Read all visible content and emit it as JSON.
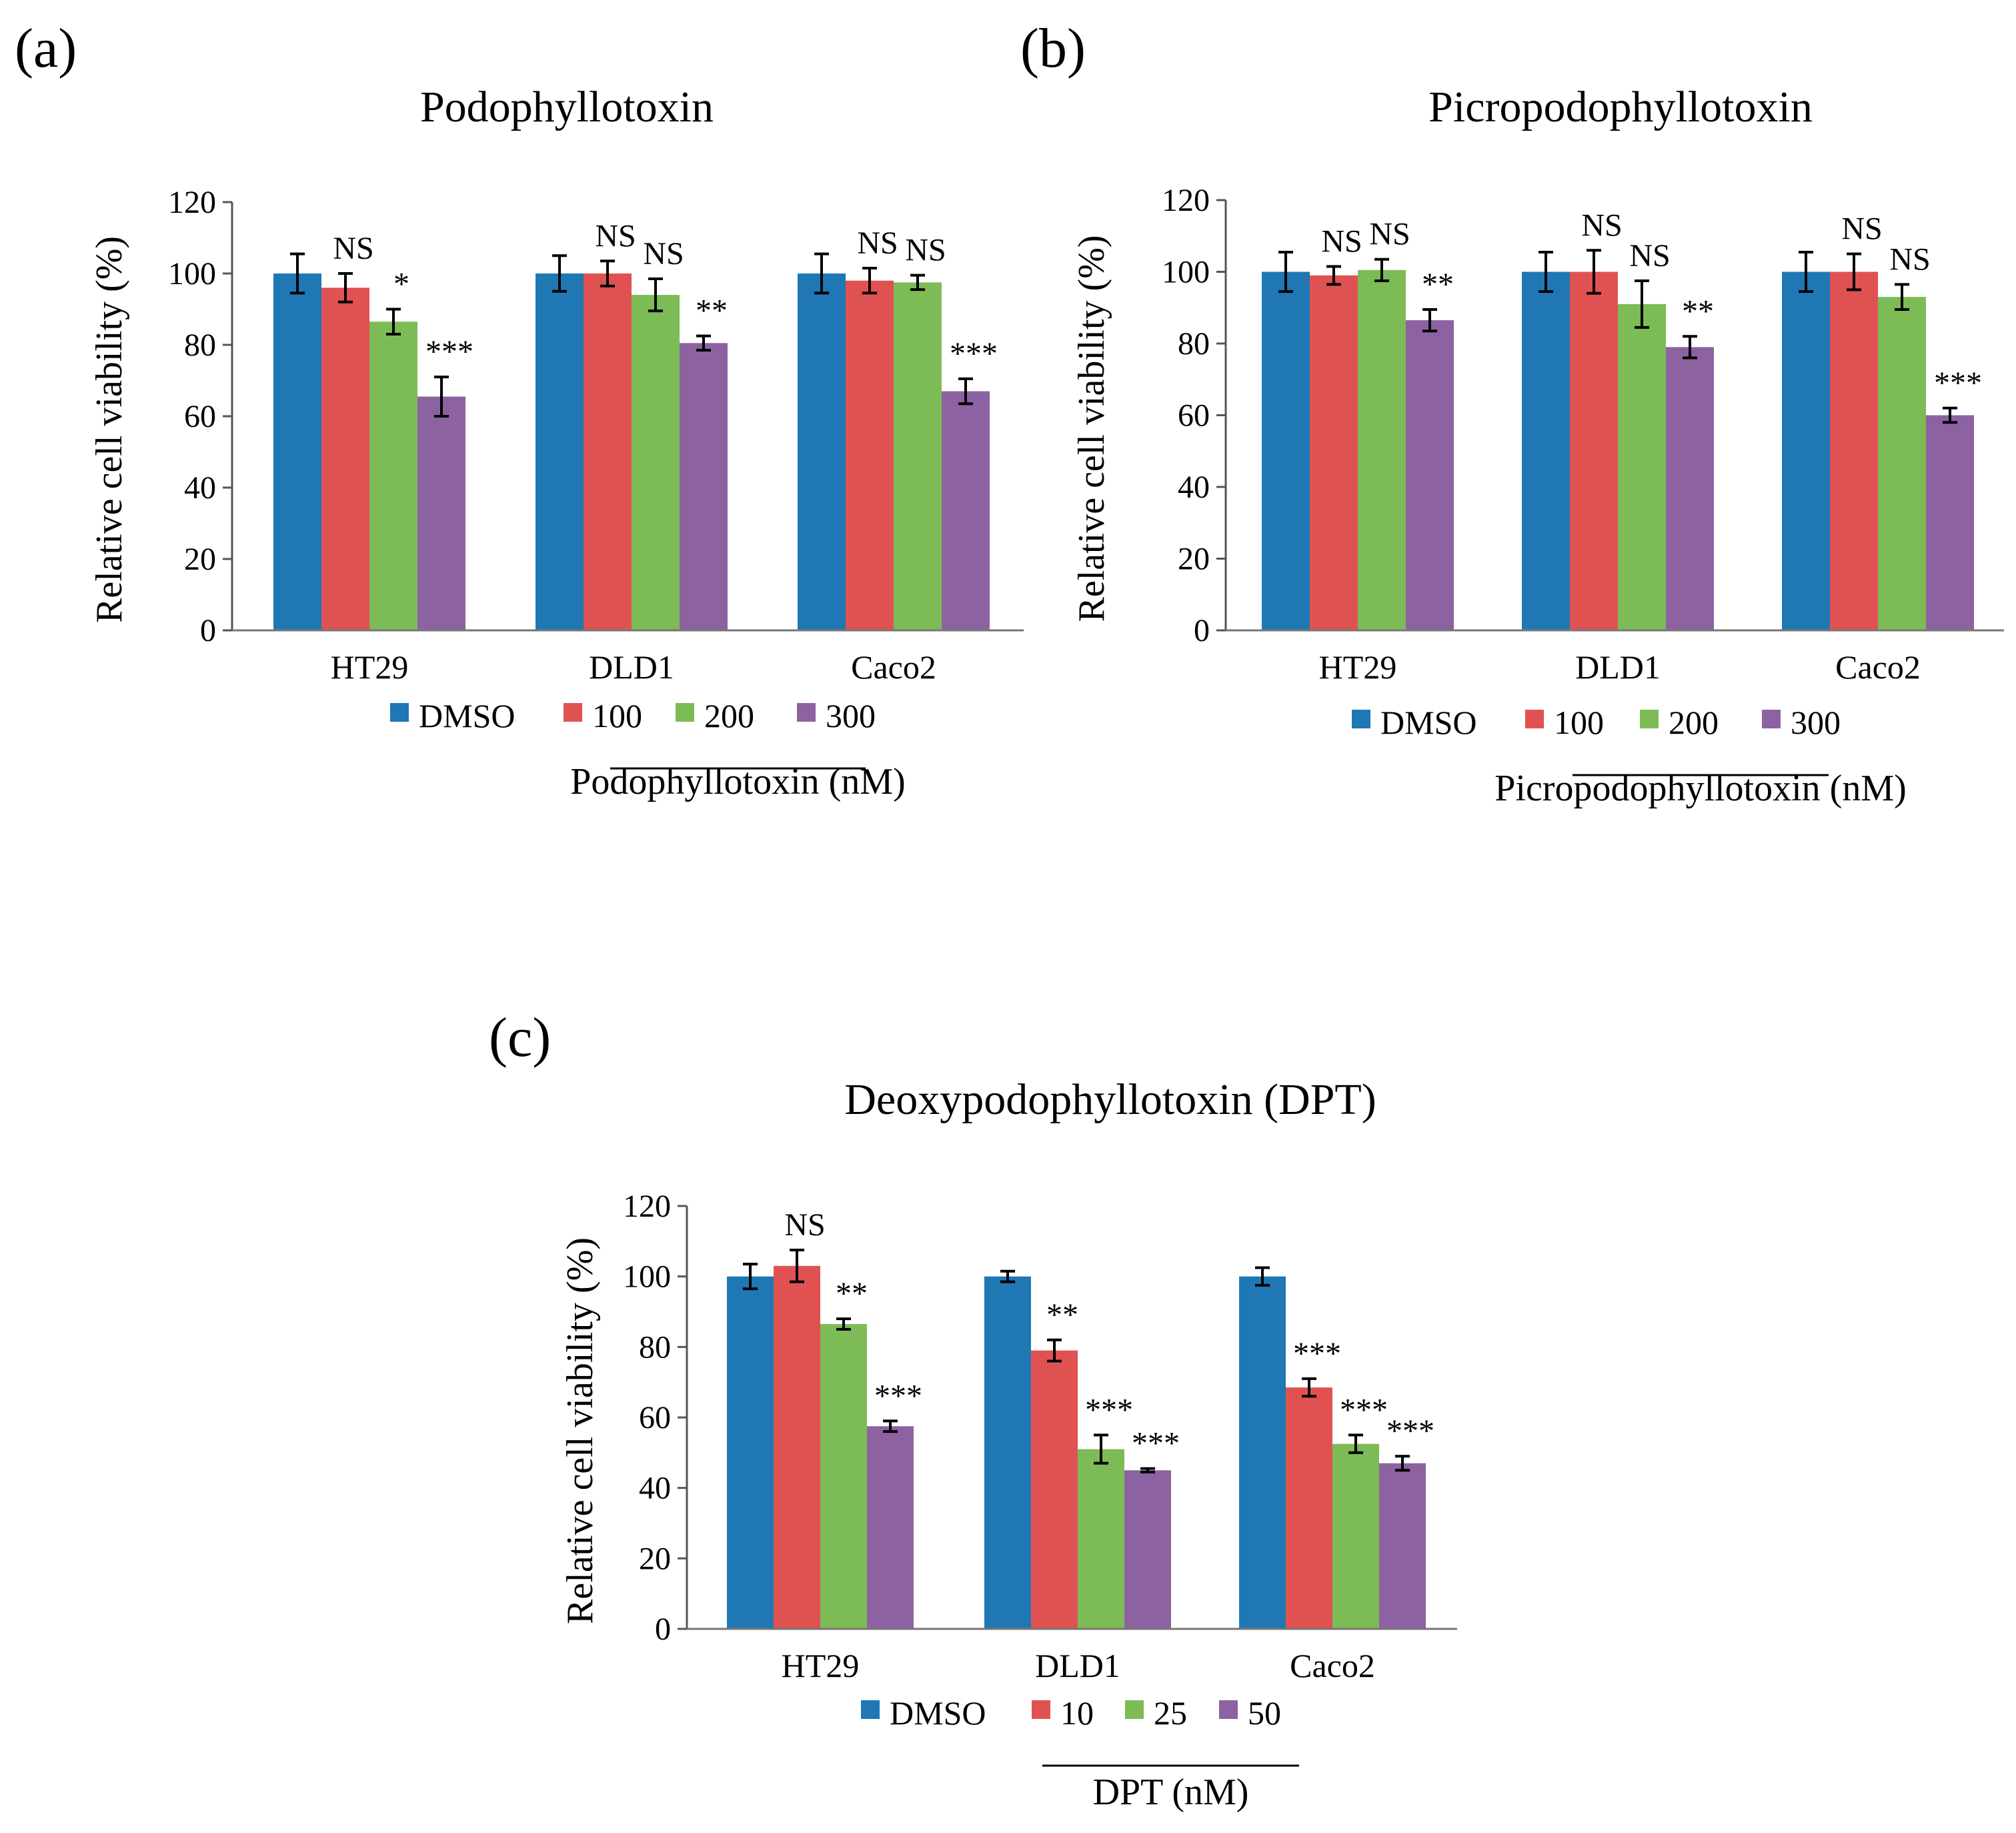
{
  "panel_labels": [
    "(a)",
    "(b)",
    "(c)"
  ],
  "chart_data": [
    {
      "type": "bar",
      "title": "Podophyllotoxin",
      "xlabel": "",
      "ylabel": "Relative cell viability (%)",
      "ylim": [
        0,
        120
      ],
      "yticks": [
        "0",
        "20",
        "40",
        "60",
        "80",
        "100",
        "120"
      ],
      "categories": [
        "HT29",
        "DLD1",
        "Caco2"
      ],
      "series": [
        {
          "name": "DMSO",
          "color": "#1f77b4",
          "values": [
            100,
            100,
            100
          ],
          "errors": [
            5.5,
            5,
            5.5
          ]
        },
        {
          "name": "100",
          "color": "#e05252",
          "values": [
            96,
            100,
            98
          ],
          "errors": [
            4,
            3.5,
            3.5
          ]
        },
        {
          "name": "200",
          "color": "#7dbb56",
          "values": [
            86.5,
            94,
            97.5
          ],
          "errors": [
            3.5,
            4.5,
            2
          ]
        },
        {
          "name": "300",
          "color": "#8c62a1",
          "values": [
            65.5,
            80.5,
            67
          ],
          "errors": [
            5.5,
            2,
            3.5
          ]
        }
      ],
      "significance": [
        [
          "",
          "NS",
          "*",
          "***"
        ],
        [
          "",
          "NS",
          "NS",
          "**"
        ],
        [
          "",
          "NS",
          "NS",
          "***"
        ]
      ],
      "legend_position": "bottom",
      "legend_sublabel": "Podophyllotoxin (nM)"
    },
    {
      "type": "bar",
      "title": "Picropodophyllotoxin",
      "xlabel": "",
      "ylabel": "Relative cell viability (%)",
      "ylim": [
        0,
        120
      ],
      "yticks": [
        "0",
        "20",
        "40",
        "60",
        "80",
        "100",
        "120"
      ],
      "categories": [
        "HT29",
        "DLD1",
        "Caco2"
      ],
      "series": [
        {
          "name": "DMSO",
          "color": "#1f77b4",
          "values": [
            100,
            100,
            100
          ],
          "errors": [
            5.5,
            5.5,
            5.5
          ]
        },
        {
          "name": "100",
          "color": "#e05252",
          "values": [
            99,
            100,
            100
          ],
          "errors": [
            2.5,
            6,
            5
          ]
        },
        {
          "name": "200",
          "color": "#7dbb56",
          "values": [
            100.5,
            91,
            93
          ],
          "errors": [
            3,
            6.5,
            3.5
          ]
        },
        {
          "name": "300",
          "color": "#8c62a1",
          "values": [
            86.5,
            79,
            60
          ],
          "errors": [
            3,
            3,
            2
          ]
        }
      ],
      "significance": [
        [
          "",
          "NS",
          "NS",
          "**"
        ],
        [
          "",
          "NS",
          "NS",
          "**"
        ],
        [
          "",
          "NS",
          "NS",
          "***"
        ]
      ],
      "legend_position": "bottom",
      "legend_sublabel": "Picropodophyllotoxin (nM)"
    },
    {
      "type": "bar",
      "title": "Deoxypodophyllotoxin (DPT)",
      "xlabel": "",
      "ylabel": "Relative cell viability (%)",
      "ylim": [
        0,
        120
      ],
      "yticks": [
        "0",
        "20",
        "40",
        "60",
        "80",
        "100",
        "120"
      ],
      "categories": [
        "HT29",
        "DLD1",
        "Caco2"
      ],
      "series": [
        {
          "name": "DMSO",
          "color": "#1f77b4",
          "values": [
            100,
            100,
            100
          ],
          "errors": [
            3.5,
            1.5,
            2.5
          ]
        },
        {
          "name": "10",
          "color": "#e05252",
          "values": [
            103,
            79,
            68.5
          ],
          "errors": [
            4.5,
            3,
            2.5
          ]
        },
        {
          "name": "25",
          "color": "#7dbb56",
          "values": [
            86.5,
            51,
            52.5
          ],
          "errors": [
            1.5,
            4,
            2.5
          ]
        },
        {
          "name": "50",
          "color": "#8c62a1",
          "values": [
            57.5,
            45,
            47
          ],
          "errors": [
            1.5,
            0.5,
            2
          ]
        }
      ],
      "significance": [
        [
          "",
          "NS",
          "**",
          "***"
        ],
        [
          "",
          "**",
          "***",
          "***"
        ],
        [
          "",
          "***",
          "***",
          "***"
        ]
      ],
      "legend_position": "bottom",
      "legend_sublabel": "DPT (nM)"
    }
  ]
}
